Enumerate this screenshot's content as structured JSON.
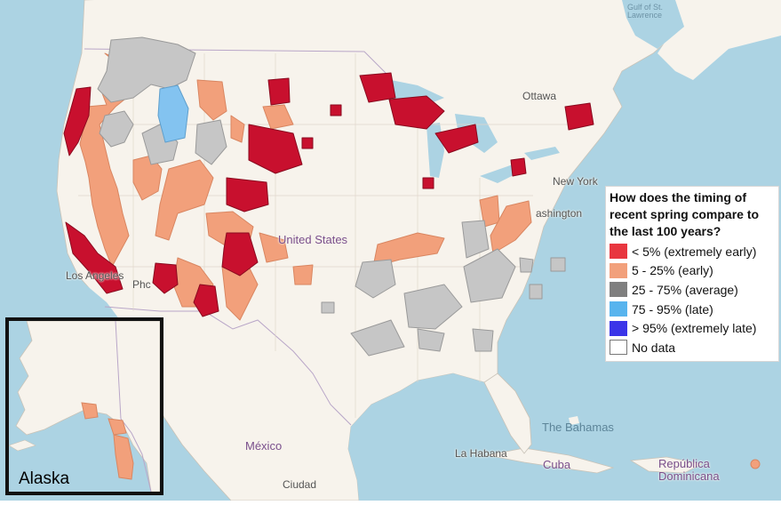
{
  "map": {
    "colors": {
      "ocean": "#acd3e3",
      "land": "#f7f3ec",
      "extremely_early": "#c8102e",
      "early": "#f2a07b",
      "average": "#c6c6c6",
      "late": "#83c3f0",
      "extremely_late": "#3b35e8"
    },
    "place_labels": {
      "united_states": "United States",
      "mexico": "México",
      "ottawa": "Ottawa",
      "new_york": "New York",
      "washington": "ashington",
      "los_angeles": "Los Angeles",
      "phoenix": "Phc",
      "the_bahamas": "The Bahamas",
      "cuba": "Cuba",
      "la_habana": "La Habana",
      "republica_dominicana": "República Dominicana",
      "ciudad": "Ciudad",
      "gulf": "Gulf of St. Lawrence"
    }
  },
  "legend": {
    "title": "How does the timing of recent spring compare to the last 100 years?",
    "items": [
      {
        "label": "< 5% (extremely early)",
        "color": "#e8363f"
      },
      {
        "label": "5 - 25% (early)",
        "color": "#f2a07b"
      },
      {
        "label": "25 - 75% (average)",
        "color": "#7f7f7f"
      },
      {
        "label": "75 - 95% (late)",
        "color": "#58b4ee"
      },
      {
        "label": "> 95% (extremely late)",
        "color": "#3b35e8"
      },
      {
        "label": "No data",
        "color": "#ffffff"
      }
    ]
  },
  "inset": {
    "label": "Alaska"
  }
}
